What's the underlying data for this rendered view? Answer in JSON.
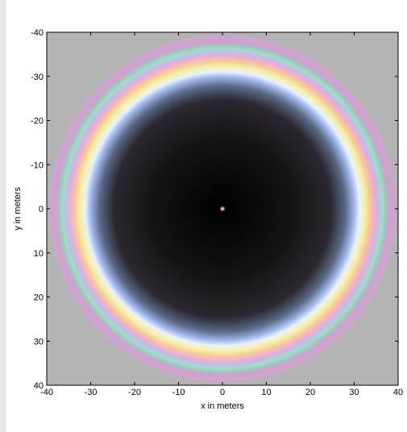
{
  "chart_data": {
    "type": "heatmap",
    "title": "",
    "xlabel": "x in meters",
    "ylabel": "y in meters",
    "xlim": [
      -40,
      40
    ],
    "ylim": [
      40,
      -40
    ],
    "y_axis_direction": "increasing-downward",
    "x_ticks": [
      "-40",
      "-30",
      "-20",
      "-10",
      "0",
      "10",
      "20",
      "30",
      "40"
    ],
    "y_ticks": [
      "-40",
      "-30",
      "-20",
      "-10",
      "0",
      "10",
      "20",
      "30",
      "40"
    ],
    "grid": false,
    "legend": "none",
    "background_color": "#b3b3b3",
    "pattern": {
      "shape": "concentric rings",
      "center": [
        0,
        0
      ],
      "center_dot_color": "#ff8060",
      "dark_disc_color": "#000000",
      "outer_radius": 40,
      "ring_colors": [
        "#000000",
        "#141414",
        "#2c2830",
        "#5a6a86",
        "#9fb6ea",
        "#e8f0ff",
        "#f3f3a6",
        "#f7c997",
        "#ebacd7",
        "#bdbde7",
        "#a3dcc7",
        "#9bc9bb",
        "#d59cd3",
        "#c9a8c8",
        "#b3b3b3"
      ]
    }
  }
}
